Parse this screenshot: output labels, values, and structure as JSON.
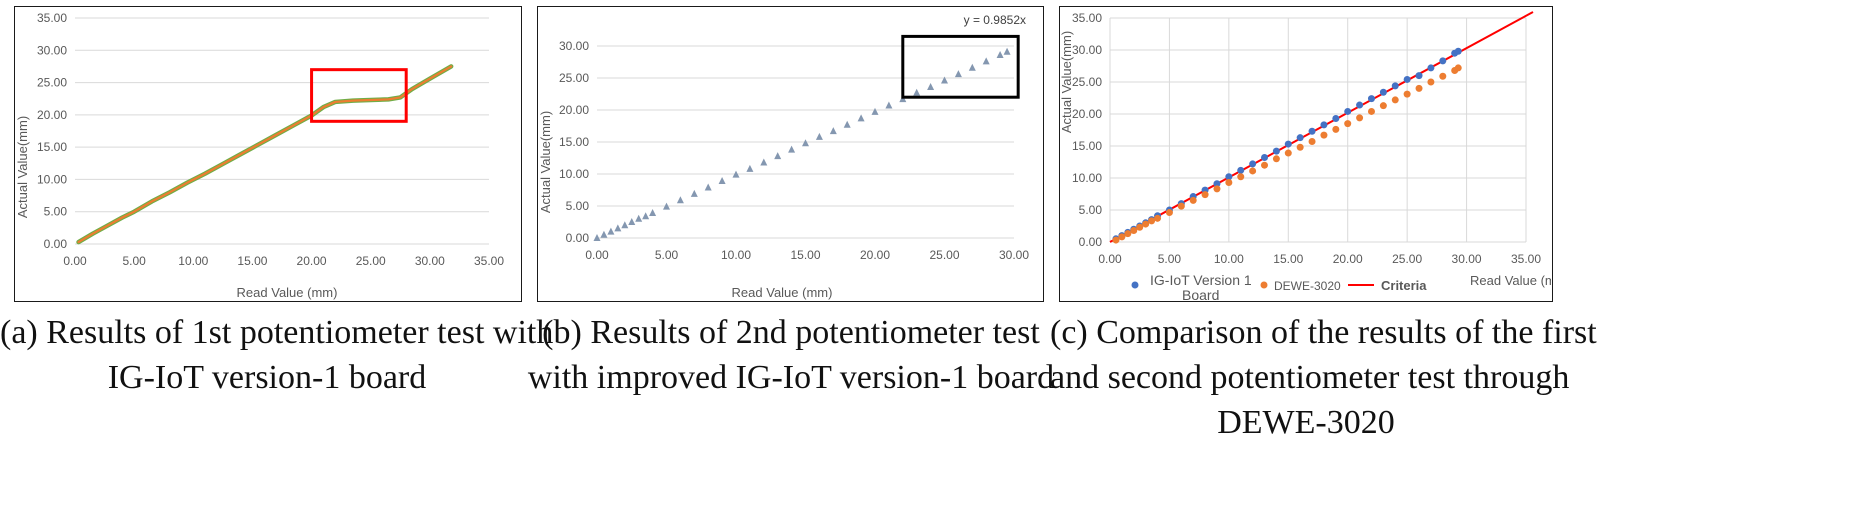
{
  "chart_data": [
    {
      "type": "line",
      "title": "",
      "xlabel": "Read Value (mm)",
      "ylabel": "Actual Value(mm)",
      "xlim": [
        0,
        35
      ],
      "ylim": [
        0,
        35
      ],
      "xticks": [
        "0.00",
        "5.00",
        "10.00",
        "15.00",
        "20.00",
        "25.00",
        "30.00",
        "35.00"
      ],
      "yticks": [
        "0.00",
        "5.00",
        "10.00",
        "15.00",
        "20.00",
        "25.00",
        "30.00",
        "35.00"
      ],
      "grid": "horizontal",
      "line_colors": [
        "#ed7d31",
        "#70ad47"
      ],
      "x": [
        0.3,
        1.5,
        2.7,
        4.0,
        5.0,
        6.5,
        8.0,
        9.5,
        11.0,
        12.5,
        14.0,
        15.5,
        17.0,
        18.5,
        20.0,
        21.0,
        22.0,
        23.5,
        25.0,
        26.5,
        27.5,
        28.5,
        30.0,
        31.8
      ],
      "series": [
        {
          "values": [
            0.3,
            1.6,
            2.8,
            4.1,
            5.0,
            6.6,
            8.0,
            9.5,
            10.9,
            12.4,
            13.9,
            15.4,
            16.9,
            18.4,
            19.9,
            21.2,
            22.0,
            22.2,
            22.3,
            22.4,
            22.7,
            24.0,
            25.6,
            27.5
          ]
        }
      ],
      "annotation_box": {
        "x": [
          20.0,
          28.0
        ],
        "y": [
          19.0,
          27.0
        ],
        "color": "#ff0000"
      }
    },
    {
      "type": "scatter",
      "title": "",
      "xlabel": "Read Value (mm)",
      "ylabel": "Actual Value(mm)",
      "xlim": [
        0,
        30
      ],
      "ylim": [
        0,
        30
      ],
      "xticks": [
        "0.00",
        "5.00",
        "10.00",
        "15.00",
        "20.00",
        "25.00",
        "30.00"
      ],
      "yticks": [
        "0.00",
        "5.00",
        "10.00",
        "15.00",
        "20.00",
        "25.00",
        "30.00"
      ],
      "grid": "horizontal",
      "annotation": "y = 0.9852x",
      "marker_color": "#8497b0",
      "x": [
        0.0,
        0.5,
        1.0,
        1.5,
        2.0,
        2.5,
        3.0,
        3.5,
        4.0,
        5.0,
        6.0,
        7.0,
        8.0,
        9.0,
        10.0,
        11.0,
        12.0,
        13.0,
        14.0,
        15.0,
        16.0,
        17.0,
        18.0,
        19.0,
        20.0,
        21.0,
        22.0,
        23.0,
        24.0,
        25.0,
        26.0,
        27.0,
        28.0,
        29.0,
        29.5
      ],
      "series": [
        {
          "values": [
            0.0,
            0.5,
            1.0,
            1.5,
            2.0,
            2.5,
            3.0,
            3.4,
            3.9,
            4.9,
            5.9,
            6.9,
            7.9,
            8.9,
            9.9,
            10.8,
            11.8,
            12.8,
            13.8,
            14.8,
            15.8,
            16.7,
            17.7,
            18.7,
            19.7,
            20.7,
            21.7,
            22.7,
            23.6,
            24.6,
            25.6,
            26.6,
            27.6,
            28.6,
            29.1
          ]
        }
      ],
      "annotation_box": {
        "x": [
          22.0,
          30.3
        ],
        "y": [
          22.0,
          31.5
        ],
        "color": "#000000"
      }
    },
    {
      "type": "scatter",
      "title": "",
      "xlabel": "Read Value (mm)",
      "ylabel": "Actual Value(mm)",
      "xlim": [
        0,
        35
      ],
      "ylim": [
        0,
        35
      ],
      "xticks": [
        "0.00",
        "5.00",
        "10.00",
        "15.00",
        "20.00",
        "25.00",
        "30.00",
        "35.00"
      ],
      "yticks": [
        "0.00",
        "5.00",
        "10.00",
        "15.00",
        "20.00",
        "25.00",
        "30.00",
        "35.00"
      ],
      "grid": "both",
      "legend": "bottom",
      "legend_entries": [
        "IG-IoT Version 1 Board",
        "DEWE-3020",
        "Criteria"
      ],
      "x": [
        0.5,
        1.0,
        1.5,
        2.0,
        2.5,
        3.0,
        3.5,
        4.0,
        5.0,
        6.0,
        7.0,
        8.0,
        9.0,
        10.0,
        11.0,
        12.0,
        13.0,
        14.0,
        15.0,
        16.0,
        17.0,
        18.0,
        19.0,
        20.0,
        21.0,
        22.0,
        23.0,
        24.0,
        25.0,
        26.0,
        27.0,
        28.0,
        29.0,
        29.3
      ],
      "series": [
        {
          "name": "IG-IoT Version 1 Board",
          "color": "#4472c4",
          "values": [
            0.5,
            1.0,
            1.5,
            2.0,
            2.5,
            3.0,
            3.5,
            4.1,
            5.0,
            6.0,
            7.1,
            8.1,
            9.1,
            10.2,
            11.2,
            12.2,
            13.2,
            14.2,
            15.3,
            16.3,
            17.3,
            18.3,
            19.3,
            20.4,
            21.4,
            22.4,
            23.4,
            24.4,
            25.4,
            26.0,
            27.2,
            28.3,
            29.5,
            29.8
          ]
        },
        {
          "name": "DEWE-3020",
          "color": "#ed7d31",
          "values": [
            0.3,
            0.8,
            1.3,
            1.8,
            2.3,
            2.8,
            3.3,
            3.7,
            4.6,
            5.6,
            6.5,
            7.4,
            8.3,
            9.3,
            10.2,
            11.1,
            12.0,
            13.0,
            13.9,
            14.8,
            15.7,
            16.7,
            17.6,
            18.5,
            19.4,
            20.4,
            21.3,
            22.2,
            23.1,
            24.0,
            25.0,
            25.9,
            26.8,
            27.2
          ]
        },
        {
          "name": "Criteria",
          "color": "#ff0000",
          "x": [
            0,
            35
          ],
          "values": [
            0,
            35
          ]
        }
      ]
    }
  ],
  "captions": {
    "a_line1": "(a) Results of 1st potentiometer test with",
    "a_line2": "IG-IoT version-1 board",
    "b_line1": "(b) Results of 2nd potentiometer test",
    "b_line2": "with improved IG-IoT version-1 board",
    "c_line1": "(c) Comparison of the results of the first",
    "c_line2": "and second potentiometer test through",
    "c_line3": "DEWE-3020"
  },
  "legend_c": {
    "item1_line1": "IG-IoT Version 1",
    "item1_line2": "Board",
    "item2": "DEWE-3020",
    "item3": "Criteria"
  }
}
